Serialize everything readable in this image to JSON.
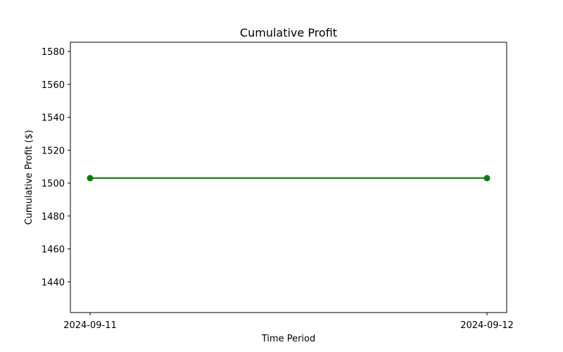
{
  "chart_data": {
    "type": "line",
    "title": "Cumulative Profit",
    "xlabel": "Time Period",
    "ylabel": "Cumulative Profit ($)",
    "x": [
      "2024-09-11",
      "2024-09-12"
    ],
    "series": [
      {
        "values": [
          1503,
          1503
        ],
        "color": "#008000",
        "marker": "circle"
      }
    ],
    "yticks": [
      1440,
      1460,
      1480,
      1500,
      1520,
      1540,
      1560,
      1580
    ],
    "ylim": [
      1421.3,
      1585.6
    ],
    "grid": false,
    "legend": "none"
  }
}
